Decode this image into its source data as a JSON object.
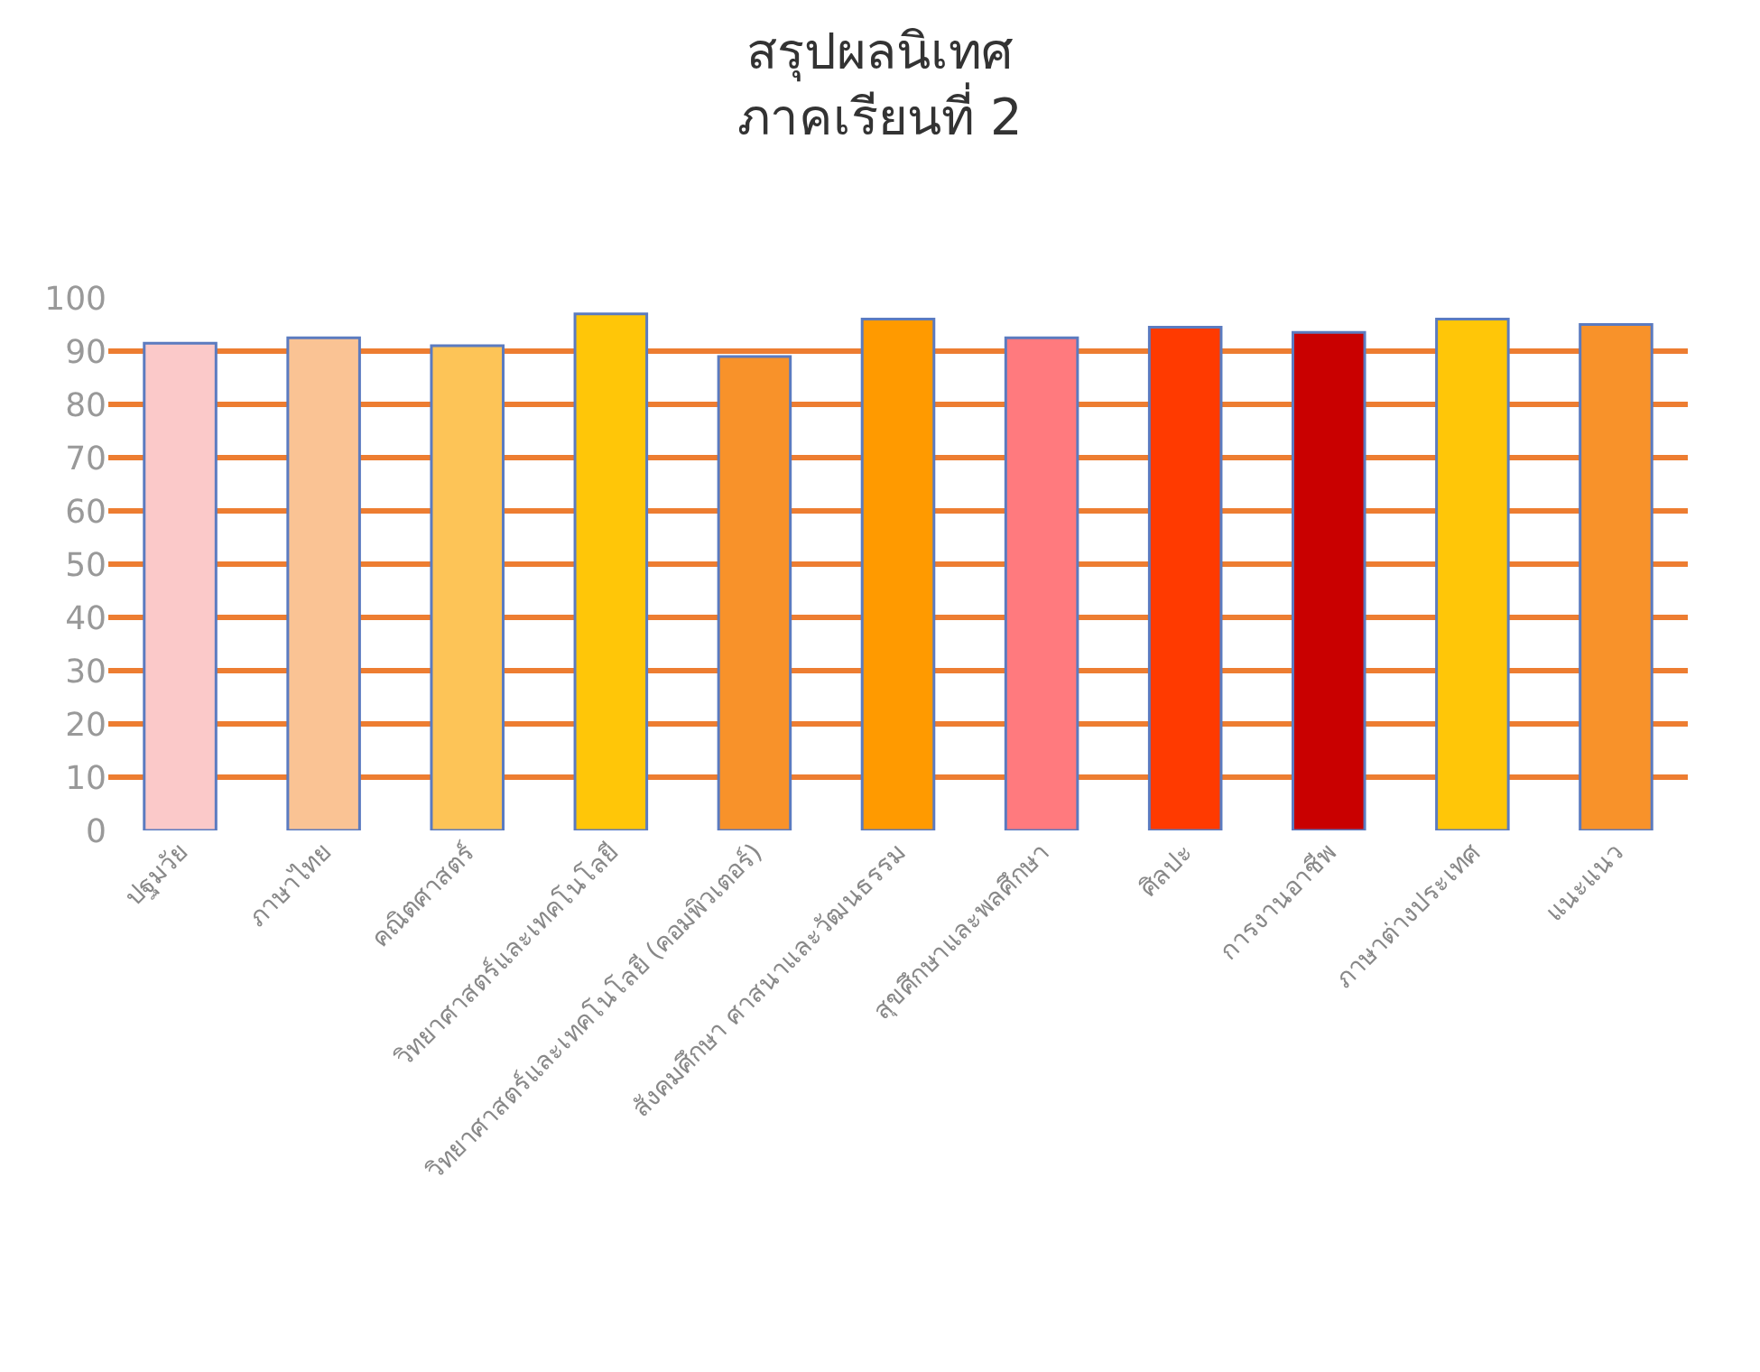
{
  "chart_data": {
    "type": "bar",
    "title": "สรุปผลนิเทศ\nภาคเรียนที่ 2",
    "categories": [
      "ปฐมวัย",
      "ภาษาไทย",
      "คณิตศาสตร์",
      "วิทยาศาสตร์และเทคโนโลยี",
      "วิทยาศาสตร์และเทคโนโลยี (คอมพิวเตอร์)",
      "สังคมศึกษา ศาสนาและวัฒนธรรม",
      "สุขศึกษาและพลศึกษา",
      "ศิลปะ",
      "การงานอาชีพ",
      "ภาษาต่างประเทศ",
      "แนะแนว"
    ],
    "values": [
      91.5,
      92.5,
      91,
      97,
      89,
      96,
      92.5,
      94.5,
      93.5,
      96,
      95
    ],
    "colors": [
      "#fbc9c9",
      "#fac394",
      "#fdc457",
      "#ffc608",
      "#f8922a",
      "#ff9a00",
      "#ff7a7e",
      "#ff3a00",
      "#c90000",
      "#ffc608",
      "#f8922a"
    ],
    "ylim": [
      0,
      100
    ],
    "yticks": [
      0,
      10,
      20,
      30,
      40,
      50,
      60,
      70,
      80,
      90,
      100
    ],
    "grid": "y"
  }
}
